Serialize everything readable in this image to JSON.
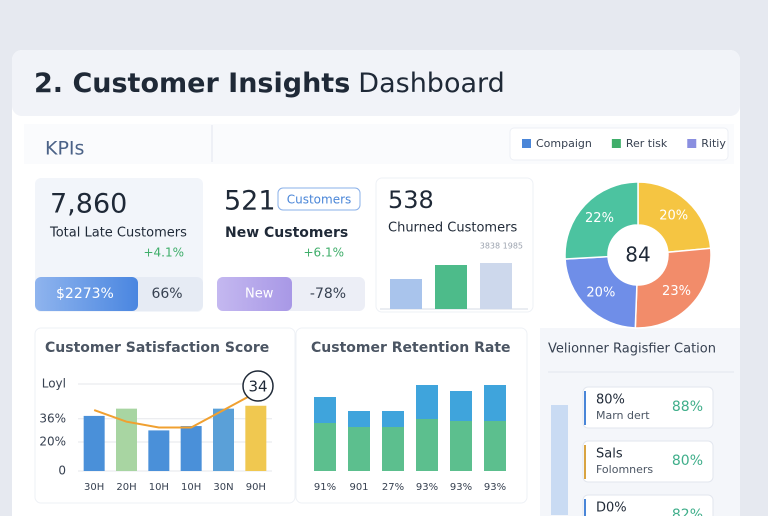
{
  "header": {
    "title_bold": "2. Customer Insights",
    "title_rest": "Dashboard"
  },
  "kpis_label": "KPIs",
  "legend": [
    {
      "name": "Compaign",
      "color": "#4a86d8"
    },
    {
      "name": "Rer tisk",
      "color": "#3fae6a"
    },
    {
      "name": "Ritiy",
      "color": "#8a8fe0"
    }
  ],
  "cards": [
    {
      "value": "7,860",
      "label": "Total Late Customers",
      "change": "+4.1%",
      "bar_left": "$2273%",
      "bar_right": "66%"
    },
    {
      "value": "521",
      "tag": "Customers",
      "label": "New Customers",
      "change": "+6.1%",
      "bar_left": "New",
      "bar_right": "-78%"
    },
    {
      "value": "538",
      "label": "Churned Customers",
      "note": "3838 1985"
    }
  ],
  "chart_data": [
    {
      "type": "bar",
      "values": [
        30,
        44,
        46
      ],
      "colors": [
        "#a9c4ec",
        "#4dbb8a",
        "#cdd8ec"
      ]
    },
    {
      "type": "pie",
      "center_label": "84",
      "values": [
        20,
        23,
        20,
        22
      ],
      "value_labels": [
        "20%",
        "23%",
        "20%",
        "22%"
      ],
      "colors": [
        "#f5c542",
        "#f28c6a",
        "#6f8ee8",
        "#4cc3a0"
      ]
    },
    {
      "type": "bar",
      "title": "Customer Satisfaction Score",
      "categories": [
        "30H",
        "20H",
        "10H",
        "10H",
        "30N",
        "90H"
      ],
      "values": [
        38,
        43,
        28,
        31,
        43,
        45
      ],
      "colors": [
        "#4a90d9",
        "#a8d5a2",
        "#4a90d9",
        "#4a90d9",
        "#5aa0d8",
        "#f0c850"
      ],
      "line": {
        "color": "#f0a030",
        "values": [
          42,
          34,
          30,
          30,
          42,
          54
        ]
      },
      "badge": "34",
      "ylim": [
        0,
        60
      ],
      "yticks": [
        {
          "value": 0,
          "label": "0"
        },
        {
          "value": 20,
          "label": "20%"
        },
        {
          "value": 36,
          "label": "36%"
        },
        {
          "value": 60,
          "label": "Loyl"
        }
      ],
      "grid": true
    },
    {
      "type": "stacked",
      "title": "Customer Retention Rate",
      "categories": [
        "91%",
        "901",
        "27%",
        "93%",
        "93%",
        "93%"
      ],
      "series": [
        {
          "color": "#5cbf8e",
          "values": [
            48,
            44,
            44,
            52,
            50,
            50
          ]
        },
        {
          "color": "#3fa4dc",
          "values": [
            26,
            16,
            16,
            34,
            30,
            36
          ]
        }
      ]
    }
  ],
  "side": {
    "title": "Velionner Ragisfier Cation",
    "items": [
      {
        "top": "80%",
        "bottom": "Marn dert",
        "value": "88%"
      },
      {
        "top": "Sals",
        "bottom": "Folomners",
        "value": "80%"
      },
      {
        "top": "D0%",
        "bottom": "",
        "value": "82%"
      }
    ]
  }
}
